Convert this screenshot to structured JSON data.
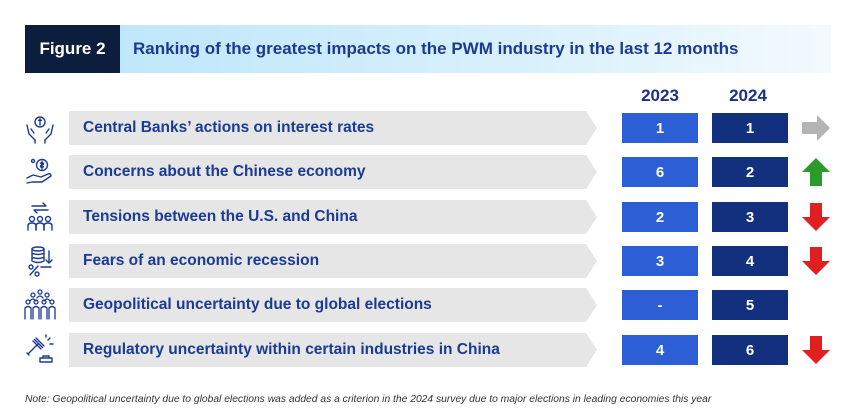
{
  "header": {
    "figure_label": "Figure 2",
    "title": "Ranking of the greatest impacts on the PWM industry in the last 12 months"
  },
  "columns": {
    "year1": "2023",
    "year2": "2024"
  },
  "rows": [
    {
      "label": "Central Banks’ actions on interest rates",
      "rank_2023": "1",
      "rank_2024": "1",
      "trend": "unchanged",
      "icon": "hands-coin-icon"
    },
    {
      "label": "Concerns about the Chinese economy",
      "rank_2023": "6",
      "rank_2024": "2",
      "trend": "up",
      "icon": "hand-money-icon"
    },
    {
      "label": "Tensions between the U.S. and China",
      "rank_2023": "2",
      "rank_2024": "3",
      "trend": "down",
      "icon": "people-exchange-icon"
    },
    {
      "label": "Fears of an economic recession",
      "rank_2023": "3",
      "rank_2024": "4",
      "trend": "down",
      "icon": "coins-decline-icon"
    },
    {
      "label": "Geopolitical uncertainty due to global elections",
      "rank_2023": "-",
      "rank_2024": "5",
      "trend": "none",
      "icon": "crowd-icon"
    },
    {
      "label": "Regulatory uncertainty within certain industries in China",
      "rank_2023": "4",
      "rank_2024": "6",
      "trend": "down",
      "icon": "gavel-icon"
    }
  ],
  "colors": {
    "trend_up": "#2a9a2a",
    "trend_down": "#e02020",
    "trend_unchanged": "#b4b4b4",
    "icon": "#1b3a93"
  },
  "note": "Note: Geopolitical uncertainty due to global elections was added as a criterion in the 2024 survey due to major elections in leading economies this year"
}
